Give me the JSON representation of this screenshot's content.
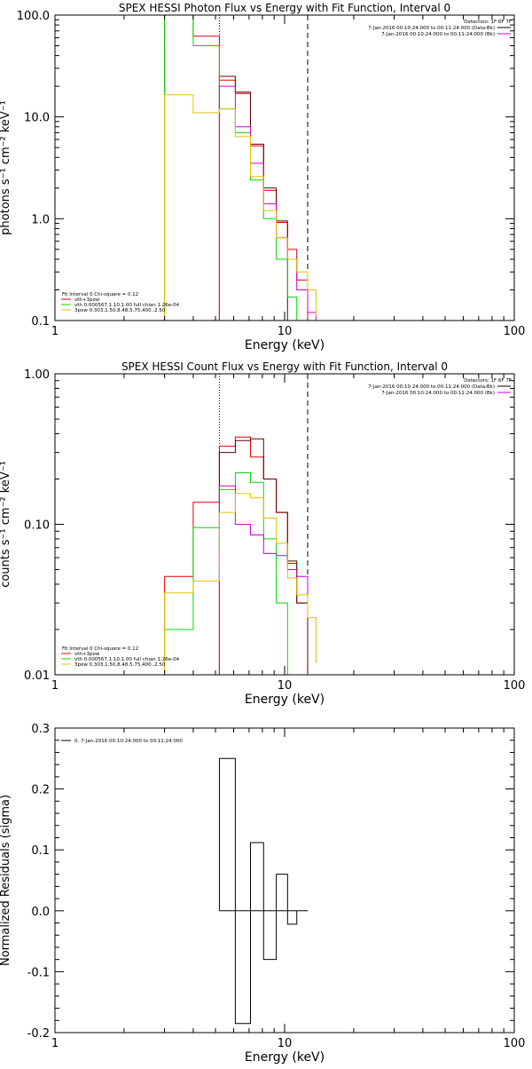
{
  "colors": {
    "red": "#e00000",
    "green": "#00d800",
    "magenta": "#d000d0",
    "yellow": "#e8c000",
    "dark": "#600000",
    "black": "#000000",
    "purple": "#8000a0"
  },
  "chart_data": [
    {
      "type": "line",
      "title": "SPEX HESSI Photon Flux vs Energy with Fit Function, Interval 0",
      "xlabel": "Energy (keV)",
      "ylabel": "photons s⁻¹ cm⁻² keV⁻¹",
      "xscale": "log",
      "yscale": "log",
      "xlim": [
        1,
        100
      ],
      "ylim": [
        0.1,
        100
      ],
      "xticks": [
        1,
        10,
        100
      ],
      "xtick_labels": [
        "1",
        "10",
        "100"
      ],
      "yticks": [
        0.1,
        1,
        10,
        100
      ],
      "ytick_labels": [
        "0.1",
        "1.0",
        "10.0",
        "100.0"
      ],
      "vlines": [
        {
          "x": 5.2,
          "style": "dotted"
        },
        {
          "x": 12.6,
          "style": "dashed"
        }
      ],
      "legend_right": [
        {
          "text": "Detectors: 1F 6F 7F",
          "color": ""
        },
        {
          "text": "7-Jan-2016 00:10:24.000 to 00:11:24.000 (Data-Bk)",
          "color": "#000000"
        },
        {
          "text": "7-Jan-2016 00:10:24.000 to 00:11:24.000 (Bk)",
          "color": "#d000d0"
        }
      ],
      "legend_left": [
        {
          "text": "Fit Interval 0   Chi-square = 0.12",
          "color": ""
        },
        {
          "text": "vth+3pow",
          "color": "#e00000"
        },
        {
          "text": "vth 0.000567,1.10,1.00  full chian 1.26e-04",
          "color": "#00d800"
        },
        {
          "text": "3pow 0.303,1.50,8.48,5.75,400.,2.50",
          "color": "#e8c000"
        }
      ],
      "series": [
        {
          "color": "#e00000",
          "edges": [
            3,
            4,
            5.2,
            6.1,
            7.1,
            8.1,
            9.2,
            10.3,
            11.3,
            12.6
          ],
          "values": [
            120,
            62,
            23,
            17,
            5.2,
            1.9,
            0.92,
            0.5,
            0.25
          ]
        },
        {
          "color": "#600000",
          "edges": [
            5.2,
            6.1,
            7.1,
            8.1,
            9.2,
            10.3
          ],
          "values": [
            25,
            17.5,
            5.4,
            2.0,
            0.95
          ]
        },
        {
          "color": "#00d800",
          "edges": [
            3,
            4,
            5.2,
            6.1,
            7.1,
            8.1,
            9.2,
            10.3,
            11.3,
            12.6
          ],
          "values": [
            120,
            50,
            12,
            7.0,
            2.4,
            1.0,
            0.4,
            0.17,
            0.06
          ]
        },
        {
          "color": "#d000d0",
          "edges": [
            5.2,
            6.1,
            7.1,
            8.1,
            9.2,
            10.3,
            11.3,
            12.6,
            13.7
          ],
          "values": [
            20,
            8.0,
            3.5,
            1.4,
            0.65,
            0.4,
            0.2,
            0.12
          ]
        },
        {
          "color": "#e8c000",
          "edges": [
            3,
            4,
            5.2,
            6.1,
            7.1,
            8.1,
            9.2,
            10.3,
            11.3,
            12.6,
            13.7
          ],
          "values": [
            16.5,
            11,
            12,
            6.4,
            2.6,
            1.2,
            0.65,
            0.4,
            0.3,
            0.2,
            0.11
          ]
        }
      ]
    },
    {
      "type": "line",
      "title": "SPEX HESSI Count Flux vs Energy with Fit Function, Interval 0",
      "xlabel": "Energy (keV)",
      "ylabel": "counts s⁻¹ cm⁻² keV⁻¹",
      "xscale": "log",
      "yscale": "log",
      "xlim": [
        1,
        100
      ],
      "ylim": [
        0.01,
        1
      ],
      "xticks": [
        1,
        10,
        100
      ],
      "xtick_labels": [
        "1",
        "10",
        "100"
      ],
      "yticks": [
        0.01,
        0.1,
        1
      ],
      "ytick_labels": [
        "0.01",
        "0.10",
        "1.00"
      ],
      "vlines": [
        {
          "x": 5.2,
          "style": "dotted"
        },
        {
          "x": 12.6,
          "style": "dashed"
        }
      ],
      "legend_right": [
        {
          "text": "Detectors: 1F 6F 7F",
          "color": ""
        },
        {
          "text": "7-Jan-2016 00:10:24.000 to 00:11:24.000 (Data-Bk)",
          "color": "#000000"
        },
        {
          "text": "7-Jan-2016 00:10:24.000 to 00:11:24.000 (Bk)",
          "color": "#d000d0"
        }
      ],
      "legend_left": [
        {
          "text": "Fit Interval 0   Chi-square = 0.12",
          "color": ""
        },
        {
          "text": "vth+3pow",
          "color": "#e00000"
        },
        {
          "text": "vth 0.000567,1.10,1.00  full chian 1.26e-04",
          "color": "#00d800"
        },
        {
          "text": "3pow 0.303,1.50,8.48,5.75,400.,2.50",
          "color": "#e8c000"
        }
      ],
      "series": [
        {
          "color": "#e00000",
          "edges": [
            3,
            4,
            5.2,
            6.1,
            7.1,
            8.1,
            9.2,
            10.3,
            11.3,
            12.6
          ],
          "values": [
            0.045,
            0.14,
            0.33,
            0.38,
            0.28,
            0.2,
            0.12,
            0.055,
            0.03
          ]
        },
        {
          "color": "#600000",
          "edges": [
            5.2,
            6.1,
            7.1,
            8.1,
            9.2,
            10.3,
            11.3,
            12.6
          ],
          "values": [
            0.3,
            0.36,
            0.37,
            0.2,
            0.12,
            0.057,
            0.03
          ]
        },
        {
          "color": "#00d800",
          "edges": [
            3,
            4,
            5.2,
            6.1,
            7.1,
            8.1,
            9.2,
            10.3,
            11.3
          ],
          "values": [
            0.02,
            0.095,
            0.17,
            0.22,
            0.19,
            0.08,
            0.03,
            0.01
          ]
        },
        {
          "color": "#d000d0",
          "edges": [
            5.2,
            6.1,
            7.1,
            8.1,
            9.2,
            10.3,
            11.3,
            12.6
          ],
          "values": [
            0.18,
            0.1,
            0.085,
            0.064,
            0.062,
            0.05,
            0.045,
            0.028
          ]
        },
        {
          "color": "#e8c000",
          "edges": [
            3,
            4,
            5.2,
            6.1,
            7.1,
            8.1,
            9.2,
            10.3,
            11.3,
            12.6,
            13.7
          ],
          "values": [
            0.035,
            0.042,
            0.12,
            0.16,
            0.15,
            0.11,
            0.075,
            0.044,
            0.034,
            0.024,
            0.012
          ]
        }
      ]
    },
    {
      "type": "line",
      "title": "",
      "xlabel": "Energy (keV)",
      "ylabel": "Normalized Residuals (sigma)",
      "xscale": "log",
      "yscale": "linear",
      "xlim": [
        1,
        100
      ],
      "ylim": [
        -0.2,
        0.3
      ],
      "xticks": [
        1,
        10,
        100
      ],
      "xtick_labels": [
        "1",
        "10",
        "100"
      ],
      "yticks": [
        -0.2,
        -0.1,
        0.0,
        0.1,
        0.2,
        0.3
      ],
      "ytick_labels": [
        "-0.2",
        "-0.1",
        "0.0",
        "0.1",
        "0.2",
        "0.3"
      ],
      "vlines": [],
      "legend_right": [],
      "legend_left": [
        {
          "text": "0. 7-Jan-2016 00:10:24.000 to 00:11:24.000",
          "color": "#000000"
        }
      ],
      "series": [
        {
          "color": "#000000",
          "bars": true,
          "edges": [
            5.2,
            6.1,
            7.1,
            8.1,
            9.2,
            10.3,
            11.3,
            12.6
          ],
          "values": [
            0.25,
            -0.185,
            0.112,
            -0.08,
            0.06,
            -0.022,
            0.0
          ]
        }
      ]
    }
  ]
}
